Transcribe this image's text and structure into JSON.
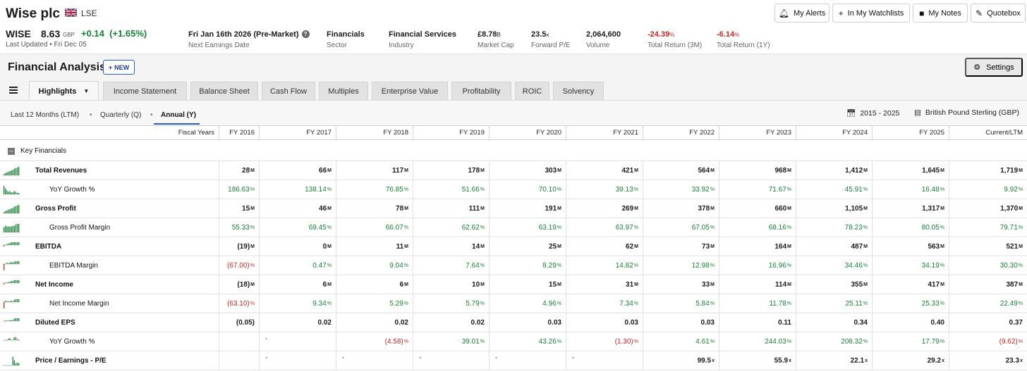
{
  "header": {
    "company": "Wise plc",
    "exchange": "LSE",
    "ticker": "WISE",
    "price": "8.63",
    "currency": "GBP",
    "change": "+0.14",
    "change_pct": "(+1.65%)",
    "last_updated": "Last Updated • Fri Dec 05",
    "stats": [
      {
        "value": "Fri Jan 16th 2026 (Pre-Market)",
        "unit": "",
        "label": "Next Earnings Date"
      },
      {
        "value": "Financials",
        "unit": "",
        "label": "Sector"
      },
      {
        "value": "Financial Services",
        "unit": "",
        "label": "Industry"
      },
      {
        "value": "£8.78",
        "unit": "B",
        "label": "Market Cap"
      },
      {
        "value": "23.5",
        "unit": "x",
        "label": "Forward P/E"
      },
      {
        "value": "2,064,600",
        "unit": "",
        "label": "Volume"
      },
      {
        "value": "-24.39",
        "unit": "%",
        "label": "Total Return (3M)"
      },
      {
        "value": "-6.14",
        "unit": "%",
        "label": "Total Return (1Y)"
      }
    ],
    "buttons": [
      "My Alerts",
      "In My Watchlists",
      "My Notes",
      "Quotebox"
    ]
  },
  "toolbar": {
    "title": "Financial Analysis",
    "new_label": "NEW",
    "settings_label": "Settings",
    "tabs": [
      "Highlights",
      "Income Statement",
      "Balance Sheet",
      "Cash Flow",
      "Multiples",
      "Enterprise Value",
      "Profitability",
      "ROIC",
      "Solvency"
    ],
    "periods": [
      "Last 12 Months (LTM)",
      "Quarterly (Q)",
      "Annual (Y)"
    ],
    "date_range": "2015 - 2025",
    "currency": "British Pound Sterling (GBP)"
  },
  "table": {
    "fiscal_years_label": "Fiscal Years",
    "columns": [
      "FY 2016",
      "FY 2017",
      "FY 2018",
      "FY 2019",
      "FY 2020",
      "FY 2021",
      "FY 2022",
      "FY 2023",
      "FY 2024",
      "FY 2025",
      "Current/LTM"
    ],
    "section": "Key Financials",
    "rows": [
      {
        "label": "Total Revenues",
        "bold": true,
        "indent": false,
        "cells": [
          "28",
          "66",
          "117",
          "178",
          "303",
          "421",
          "564",
          "968",
          "1,412",
          "1,645",
          "1,719"
        ],
        "unit": "M",
        "color": ""
      },
      {
        "label": "YoY Growth %",
        "bold": false,
        "indent": true,
        "cells": [
          "186.63",
          "138.14",
          "76.85",
          "51.66",
          "70.10",
          "39.13",
          "33.92",
          "71.67",
          "45.91",
          "16.48",
          "9.92"
        ],
        "unit": "%",
        "color": "green"
      },
      {
        "label": "Gross Profit",
        "bold": true,
        "indent": false,
        "cells": [
          "15",
          "46",
          "78",
          "111",
          "191",
          "269",
          "378",
          "660",
          "1,105",
          "1,317",
          "1,370"
        ],
        "unit": "M",
        "color": ""
      },
      {
        "label": "Gross Profit Margin",
        "bold": false,
        "indent": true,
        "cells": [
          "55.33",
          "69.45",
          "66.07",
          "62.62",
          "63.19",
          "63.97",
          "67.05",
          "68.16",
          "78.23",
          "80.05",
          "79.71"
        ],
        "unit": "%",
        "color": "green"
      },
      {
        "label": "EBITDA",
        "bold": true,
        "indent": false,
        "cells": [
          "(19)",
          "0",
          "11",
          "14",
          "25",
          "62",
          "73",
          "164",
          "487",
          "563",
          "521"
        ],
        "unit": "M",
        "color": ""
      },
      {
        "label": "EBITDA Margin",
        "bold": false,
        "indent": true,
        "cells": [
          "(67.00)",
          "0.47",
          "9.04",
          "7.64",
          "8.29",
          "14.82",
          "12.98",
          "16.96",
          "34.46",
          "34.19",
          "30.30"
        ],
        "unit": "%",
        "color": "green"
      },
      {
        "label": "Net Income",
        "bold": true,
        "indent": false,
        "cells": [
          "(18)",
          "6",
          "6",
          "10",
          "15",
          "31",
          "33",
          "114",
          "355",
          "417",
          "387"
        ],
        "unit": "M",
        "color": ""
      },
      {
        "label": "Net Income Margin",
        "bold": false,
        "indent": true,
        "cells": [
          "(63.10)",
          "9.34",
          "5.29",
          "5.79",
          "4.96",
          "7.34",
          "5.84",
          "11.78",
          "25.11",
          "25.33",
          "22.49"
        ],
        "unit": "%",
        "color": "green"
      },
      {
        "label": "Diluted EPS",
        "bold": true,
        "indent": false,
        "cells": [
          "(0.05)",
          "0.02",
          "0.02",
          "0.02",
          "0.03",
          "0.03",
          "0.03",
          "0.11",
          "0.34",
          "0.40",
          "0.37"
        ],
        "unit": "",
        "color": ""
      },
      {
        "label": "YoY Growth %",
        "bold": false,
        "indent": true,
        "cells": [
          "",
          "-",
          "(4.58)",
          "39.01",
          "43.26",
          "(1.30)",
          "4.61",
          "244.03",
          "208.32",
          "17.79",
          "(9.62)"
        ],
        "unit": "%",
        "color": "green"
      },
      {
        "label": "Price / Earnings - P/E",
        "bold": true,
        "indent": false,
        "cells": [
          "",
          "-",
          "-",
          "-",
          "-",
          "-",
          "99.5",
          "55.9",
          "22.1",
          "29.2",
          "23.3"
        ],
        "unit": "x",
        "color": ""
      }
    ]
  },
  "sparklines": [
    [
      2,
      4,
      5,
      6,
      7,
      8,
      9,
      11,
      12,
      13,
      14
    ],
    [
      13,
      9,
      6,
      4,
      5,
      3,
      3,
      5,
      4,
      2,
      2
    ],
    [
      2,
      4,
      5,
      6,
      7,
      8,
      9,
      11,
      12,
      13,
      14
    ],
    [
      8,
      10,
      9,
      9,
      9,
      9,
      10,
      10,
      12,
      13,
      13
    ],
    [
      -3,
      0,
      2,
      3,
      4,
      6,
      6,
      8,
      11,
      13,
      12
    ],
    [
      -9,
      0,
      2,
      1,
      2,
      3,
      2,
      3,
      6,
      6,
      5
    ],
    [
      -3,
      1,
      1,
      2,
      3,
      4,
      4,
      7,
      11,
      13,
      12
    ],
    [
      -9,
      2,
      1,
      1,
      1,
      2,
      1,
      3,
      5,
      5,
      4
    ],
    [
      -1,
      1,
      1,
      1,
      2,
      2,
      2,
      5,
      11,
      13,
      12
    ],
    [
      0,
      0,
      -1,
      3,
      4,
      0,
      1,
      13,
      11,
      2,
      -1
    ],
    [
      0,
      0,
      0,
      0,
      0,
      0,
      12,
      7,
      3,
      4,
      3
    ]
  ],
  "colors": {
    "positive": "#1a7f37",
    "negative": "#c62828",
    "accent": "#2a5bd7"
  }
}
